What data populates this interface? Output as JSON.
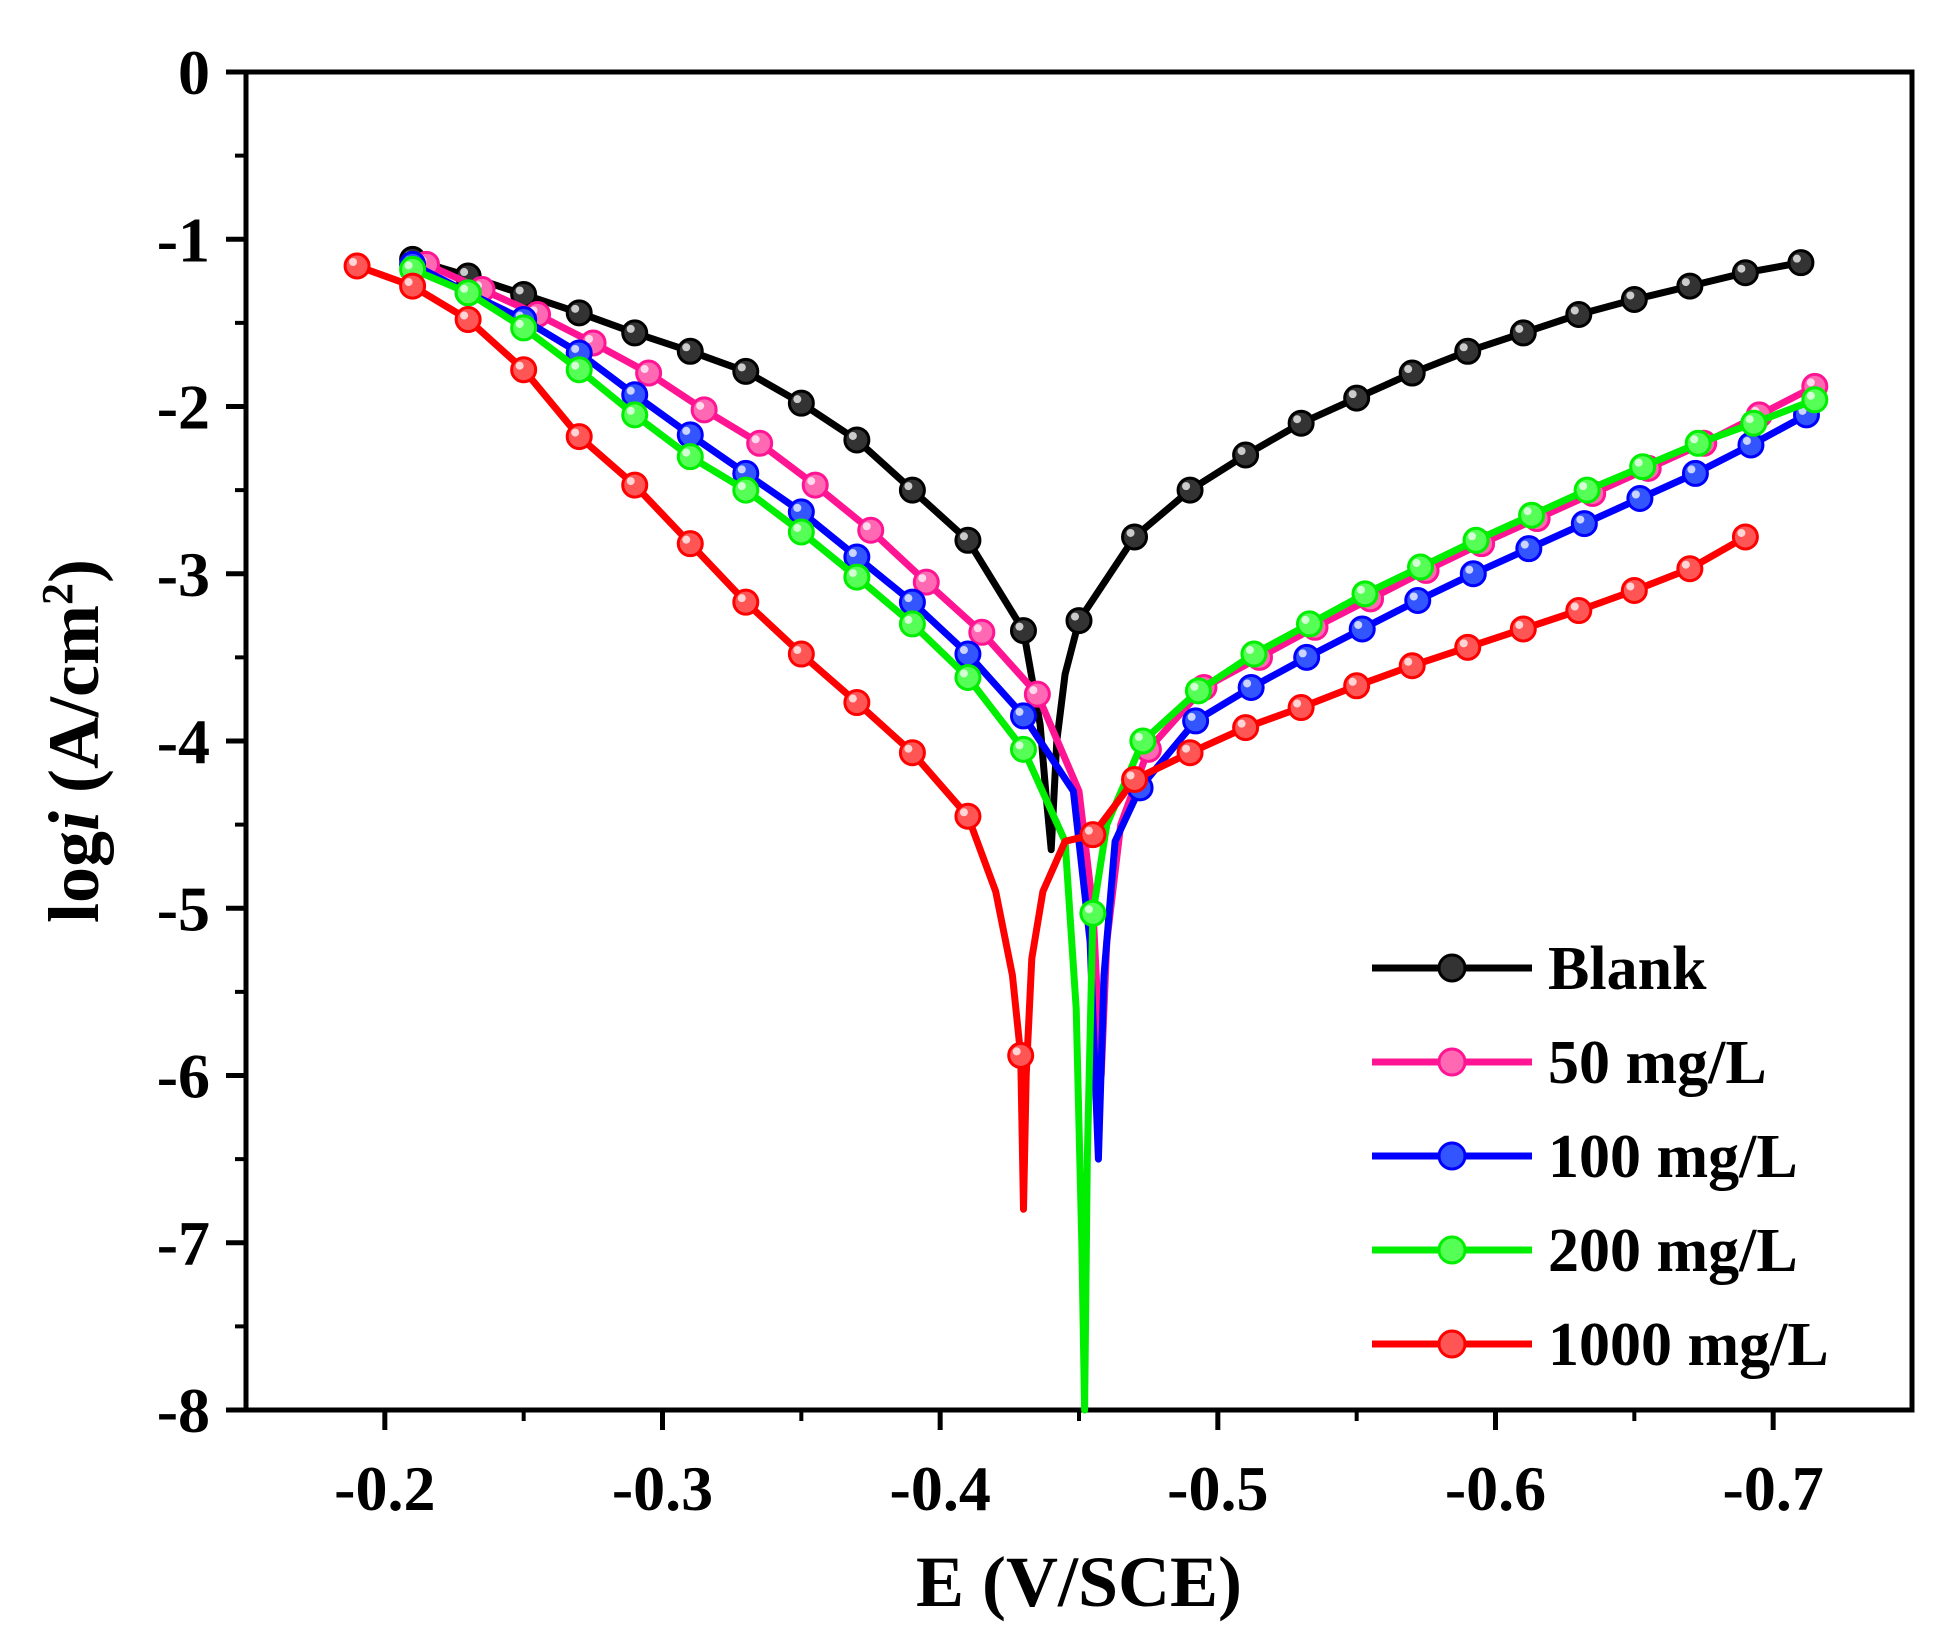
{
  "chart_data": {
    "type": "line",
    "xlabel": "E (V/SCE)",
    "ylabel_prefix": "log",
    "ylabel_italic": "i",
    "ylabel_unit": " (A/cm",
    "ylabel_sup": "2",
    "ylabel_close": ")",
    "xlim": [
      -0.15,
      -0.75
    ],
    "ylim": [
      -8,
      0
    ],
    "x_ticks": [
      -0.2,
      -0.3,
      -0.4,
      -0.5,
      -0.6,
      -0.7
    ],
    "x_tick_labels": [
      "-0.2",
      "-0.3",
      "-0.4",
      "-0.5",
      "-0.6",
      "-0.7"
    ],
    "y_ticks": [
      0,
      -1,
      -2,
      -3,
      -4,
      -5,
      -6,
      -7,
      -8
    ],
    "y_tick_labels": [
      "0",
      "-1",
      "-2",
      "-3",
      "-4",
      "-5",
      "-6",
      "-7",
      "-8"
    ],
    "grid": false,
    "legend_position": "bottom-right",
    "series": [
      {
        "name": "Blank",
        "color": "#000000",
        "marker_color": "#333333",
        "x": [
          -0.21,
          -0.23,
          -0.25,
          -0.27,
          -0.29,
          -0.31,
          -0.33,
          -0.35,
          -0.37,
          -0.39,
          -0.41,
          -0.43,
          -0.436,
          -0.438,
          -0.44,
          -0.442,
          -0.445,
          -0.45,
          -0.47,
          -0.49,
          -0.51,
          -0.53,
          -0.55,
          -0.57,
          -0.59,
          -0.61,
          -0.63,
          -0.65,
          -0.67,
          -0.69,
          -0.71
        ],
        "y": [
          -1.12,
          -1.22,
          -1.33,
          -1.44,
          -1.56,
          -1.67,
          -1.79,
          -1.98,
          -2.2,
          -2.5,
          -2.8,
          -3.34,
          -3.9,
          -4.3,
          -4.65,
          -4.0,
          -3.6,
          -3.28,
          -2.78,
          -2.5,
          -2.29,
          -2.1,
          -1.95,
          -1.8,
          -1.67,
          -1.56,
          -1.45,
          -1.36,
          -1.28,
          -1.2,
          -1.14
        ],
        "markers": [
          0,
          1,
          2,
          3,
          4,
          5,
          6,
          7,
          8,
          9,
          10,
          11,
          17,
          18,
          19,
          20,
          21,
          22,
          23,
          24,
          25,
          26,
          27,
          28,
          29,
          30
        ]
      },
      {
        "name": "50 mg/L",
        "color": "#ff1493",
        "marker_color": "#ff69b4",
        "x": [
          -0.215,
          -0.235,
          -0.255,
          -0.275,
          -0.295,
          -0.315,
          -0.335,
          -0.355,
          -0.375,
          -0.395,
          -0.415,
          -0.435,
          -0.45,
          -0.455,
          -0.458,
          -0.46,
          -0.465,
          -0.475,
          -0.495,
          -0.515,
          -0.535,
          -0.555,
          -0.575,
          -0.595,
          -0.615,
          -0.635,
          -0.655,
          -0.675,
          -0.695,
          -0.715
        ],
        "y": [
          -1.15,
          -1.3,
          -1.45,
          -1.62,
          -1.8,
          -2.02,
          -2.22,
          -2.47,
          -2.74,
          -3.05,
          -3.35,
          -3.72,
          -4.3,
          -5.0,
          -6.0,
          -5.2,
          -4.5,
          -4.05,
          -3.68,
          -3.5,
          -3.32,
          -3.15,
          -2.98,
          -2.82,
          -2.67,
          -2.52,
          -2.37,
          -2.22,
          -2.05,
          -1.88
        ],
        "markers": [
          0,
          1,
          2,
          3,
          4,
          5,
          6,
          7,
          8,
          9,
          10,
          11,
          17,
          18,
          19,
          20,
          21,
          22,
          23,
          24,
          25,
          26,
          27,
          28,
          29
        ]
      },
      {
        "name": "100 mg/L",
        "color": "#0000ff",
        "marker_color": "#3355ff",
        "x": [
          -0.21,
          -0.23,
          -0.25,
          -0.27,
          -0.29,
          -0.31,
          -0.33,
          -0.35,
          -0.37,
          -0.39,
          -0.41,
          -0.43,
          -0.448,
          -0.454,
          -0.457,
          -0.459,
          -0.463,
          -0.472,
          -0.492,
          -0.512,
          -0.532,
          -0.552,
          -0.572,
          -0.592,
          -0.612,
          -0.632,
          -0.652,
          -0.672,
          -0.692,
          -0.712
        ],
        "y": [
          -1.15,
          -1.32,
          -1.48,
          -1.68,
          -1.93,
          -2.17,
          -2.4,
          -2.63,
          -2.9,
          -3.17,
          -3.48,
          -3.85,
          -4.3,
          -5.2,
          -6.5,
          -5.4,
          -4.6,
          -4.28,
          -3.88,
          -3.68,
          -3.5,
          -3.33,
          -3.16,
          -3.0,
          -2.85,
          -2.7,
          -2.55,
          -2.4,
          -2.23,
          -2.05
        ],
        "markers": [
          0,
          1,
          2,
          3,
          4,
          5,
          6,
          7,
          8,
          9,
          10,
          11,
          17,
          18,
          19,
          20,
          21,
          22,
          23,
          24,
          25,
          26,
          27,
          28,
          29
        ]
      },
      {
        "name": "200 mg/L",
        "color": "#00ee00",
        "marker_color": "#55ff55",
        "x": [
          -0.21,
          -0.23,
          -0.25,
          -0.27,
          -0.29,
          -0.31,
          -0.33,
          -0.35,
          -0.37,
          -0.39,
          -0.41,
          -0.43,
          -0.445,
          -0.449,
          -0.451,
          -0.452,
          -0.453,
          -0.455,
          -0.46,
          -0.473,
          -0.493,
          -0.513,
          -0.533,
          -0.553,
          -0.573,
          -0.593,
          -0.613,
          -0.633,
          -0.653,
          -0.673,
          -0.693,
          -0.715
        ],
        "y": [
          -1.18,
          -1.32,
          -1.53,
          -1.78,
          -2.05,
          -2.3,
          -2.5,
          -2.75,
          -3.02,
          -3.3,
          -3.62,
          -4.05,
          -4.6,
          -5.6,
          -7.0,
          -8.0,
          -6.5,
          -5.03,
          -4.5,
          -4.0,
          -3.7,
          -3.48,
          -3.3,
          -3.12,
          -2.96,
          -2.8,
          -2.65,
          -2.5,
          -2.36,
          -2.22,
          -2.1,
          -1.96
        ],
        "markers": [
          0,
          1,
          2,
          3,
          4,
          5,
          6,
          7,
          8,
          9,
          10,
          11,
          17,
          19,
          20,
          21,
          22,
          23,
          24,
          25,
          26,
          27,
          28,
          29,
          30,
          31
        ]
      },
      {
        "name": "1000 mg/L",
        "color": "#ff0000",
        "marker_color": "#ff5555",
        "x": [
          -0.19,
          -0.21,
          -0.23,
          -0.25,
          -0.27,
          -0.29,
          -0.31,
          -0.33,
          -0.35,
          -0.37,
          -0.39,
          -0.41,
          -0.42,
          -0.426,
          -0.429,
          -0.43,
          -0.431,
          -0.433,
          -0.437,
          -0.445,
          -0.455,
          -0.47,
          -0.49,
          -0.51,
          -0.53,
          -0.55,
          -0.57,
          -0.59,
          -0.61,
          -0.63,
          -0.65,
          -0.67,
          -0.69
        ],
        "y": [
          -1.16,
          -1.28,
          -1.48,
          -1.78,
          -2.18,
          -2.47,
          -2.82,
          -3.17,
          -3.48,
          -3.77,
          -4.07,
          -4.45,
          -4.9,
          -5.4,
          -5.88,
          -6.8,
          -6.0,
          -5.3,
          -4.9,
          -4.6,
          -4.56,
          -4.23,
          -4.07,
          -3.92,
          -3.8,
          -3.67,
          -3.55,
          -3.44,
          -3.33,
          -3.22,
          -3.1,
          -2.97,
          -2.78
        ],
        "markers": [
          0,
          1,
          2,
          3,
          4,
          5,
          6,
          7,
          8,
          9,
          10,
          11,
          14,
          20,
          21,
          22,
          23,
          24,
          25,
          26,
          27,
          28,
          29,
          30,
          31,
          32
        ]
      }
    ]
  }
}
